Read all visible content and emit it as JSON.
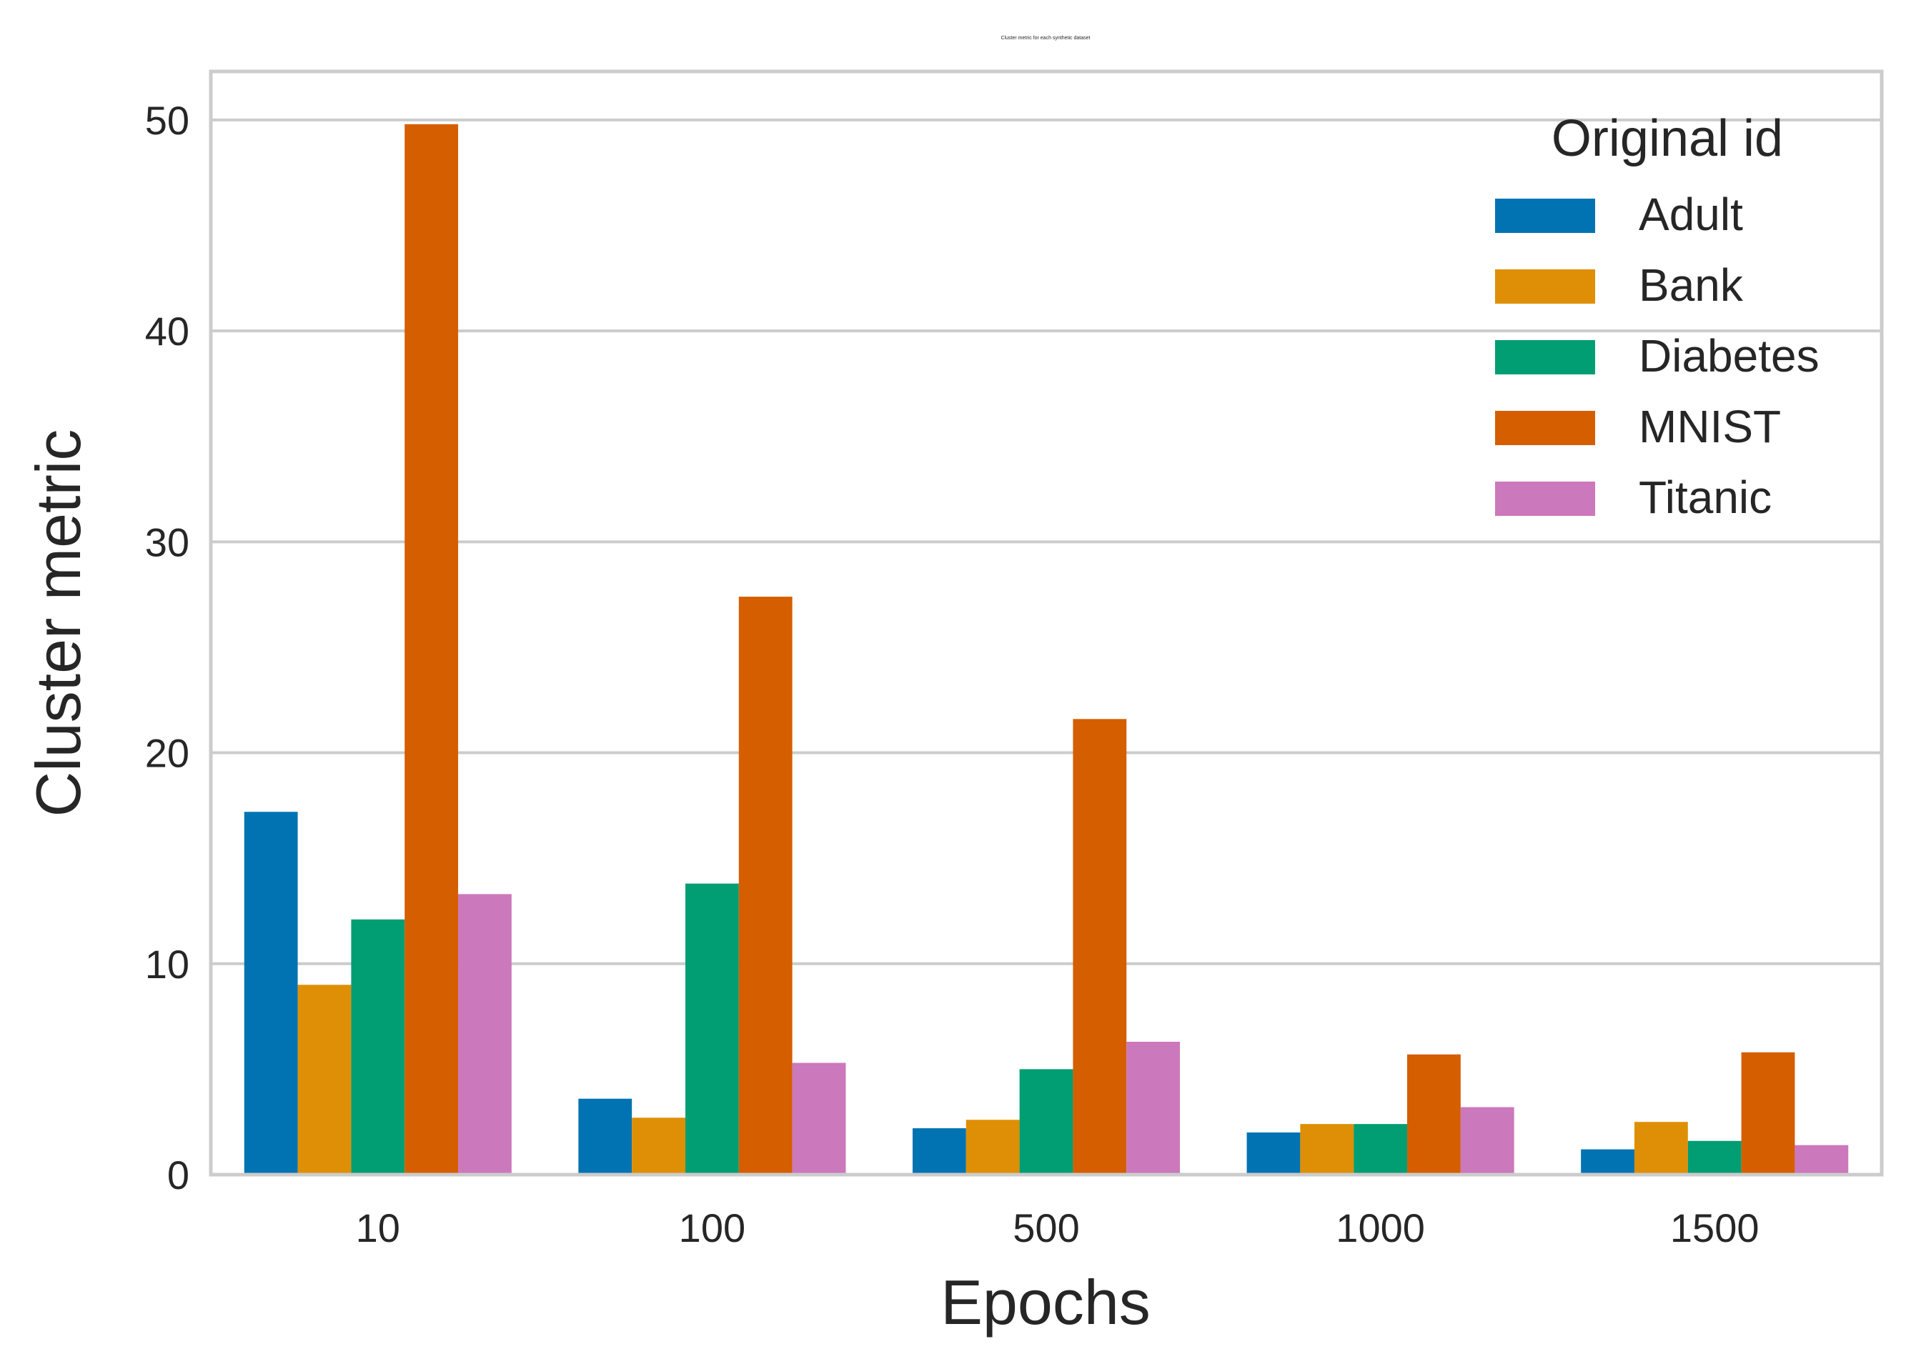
{
  "chart_data": {
    "type": "bar",
    "title": "Cluster metric for each synthetic dataset",
    "xlabel": "Epochs",
    "ylabel": "Cluster metric",
    "categories": [
      "10",
      "100",
      "500",
      "1000",
      "1500"
    ],
    "ylim": [
      0,
      52.3
    ],
    "yticks": [
      0,
      10,
      20,
      30,
      40,
      50
    ],
    "grid": "horizontal",
    "legend": {
      "title": "Original id",
      "placement": "top-right"
    },
    "series": [
      {
        "name": "Adult",
        "color": "#0173b2",
        "values": [
          17.2,
          3.6,
          2.2,
          2.0,
          1.2
        ]
      },
      {
        "name": "Bank",
        "color": "#de8f05",
        "values": [
          9.0,
          2.7,
          2.6,
          2.4,
          2.5
        ]
      },
      {
        "name": "Diabetes",
        "color": "#029e73",
        "values": [
          12.1,
          13.8,
          5.0,
          2.4,
          1.6
        ]
      },
      {
        "name": "MNIST",
        "color": "#d55e00",
        "values": [
          49.8,
          27.4,
          21.6,
          5.7,
          5.8
        ]
      },
      {
        "name": "Titanic",
        "color": "#cc78bc",
        "values": [
          13.3,
          5.3,
          6.3,
          3.2,
          1.4
        ]
      }
    ]
  }
}
